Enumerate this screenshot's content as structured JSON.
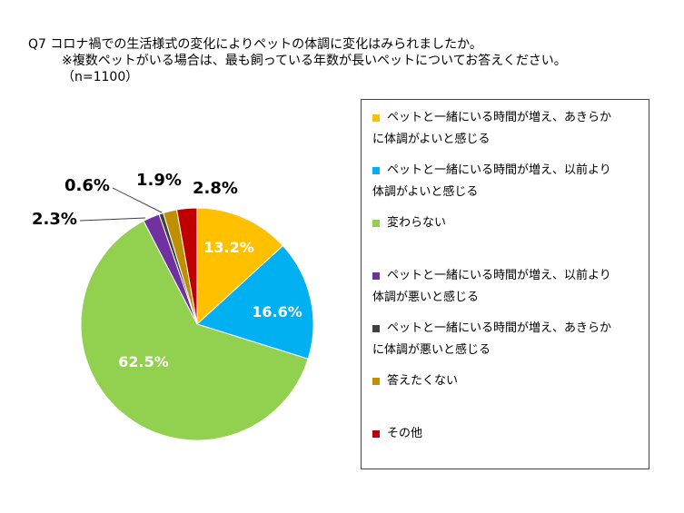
{
  "title": {
    "line1": "Q7 コロナ禍での生活様式の変化によりペットの体調に変化はみられましたか。",
    "line2": "※複数ペットがいる場合は、最も飼っている年数が長いペットについてお答えください。",
    "line3": "（n=1100）"
  },
  "chart_data": {
    "type": "pie",
    "title": "Q7 コロナ禍での生活様式の変化によりペットの体調に変化はみられましたか。",
    "subtitle": "※複数ペットがいる場合は、最も飼っている年数が長いペットについてお答えください。（n=1100）",
    "start": "12 o'clock, clockwise",
    "legend_position": "right",
    "slices": [
      {
        "label": "ペットと一緒にいる時間が増え、あきらかに体調がよいと感じる",
        "value": 13.2,
        "display": "13.2%",
        "color": "#FFC000",
        "label_inside": true,
        "label_color": "#ffffff"
      },
      {
        "label": "ペットと一緒にいる時間が増え、以前より体調がよいと感じる",
        "value": 16.6,
        "display": "16.6%",
        "color": "#00B0F0",
        "label_inside": true,
        "label_color": "#ffffff"
      },
      {
        "label": "変わらない",
        "value": 62.5,
        "display": "62.5%",
        "color": "#92D050",
        "label_inside": true,
        "label_color": "#ffffff"
      },
      {
        "label": "ペットと一緒にいる時間が増え、以前より体調が悪いと感じる",
        "value": 2.3,
        "display": "2.3%",
        "color": "#7030A0",
        "label_inside": false,
        "label_color": "#000000"
      },
      {
        "label": "ペットと一緒にいる時間が増え、あきらかに体調が悪いと感じる",
        "value": 0.6,
        "display": "0.6%",
        "color": "#404040",
        "label_inside": false,
        "label_color": "#000000"
      },
      {
        "label": "答えたくない",
        "value": 1.9,
        "display": "1.9%",
        "color": "#BF8F00",
        "label_inside": false,
        "label_color": "#000000"
      },
      {
        "label": "その他",
        "value": 2.8,
        "display": "2.8%",
        "color": "#C00000",
        "label_inside": false,
        "label_color": "#000000"
      }
    ]
  },
  "legend": {
    "items": [
      {
        "line1": "ペットと一緒にいる時間が増え、あきらか",
        "line2": "に体調がよいと感じる",
        "color": "#FFC000"
      },
      {
        "line1": "ペットと一緒にいる時間が増え、以前より",
        "line2": "体調がよいと感じる",
        "color": "#00B0F0"
      },
      {
        "line1": "変わらない",
        "line2": "",
        "color": "#92D050"
      },
      {
        "line1": "ペットと一緒にいる時間が増え、以前より",
        "line2": "体調が悪いと感じる",
        "color": "#7030A0"
      },
      {
        "line1": "ペットと一緒にいる時間が増え、あきらか",
        "line2": "に体調が悪いと感じる",
        "color": "#404040"
      },
      {
        "line1": "答えたくない",
        "line2": "",
        "color": "#BF8F00"
      },
      {
        "line1": "その他",
        "line2": "",
        "color": "#C00000"
      }
    ]
  }
}
